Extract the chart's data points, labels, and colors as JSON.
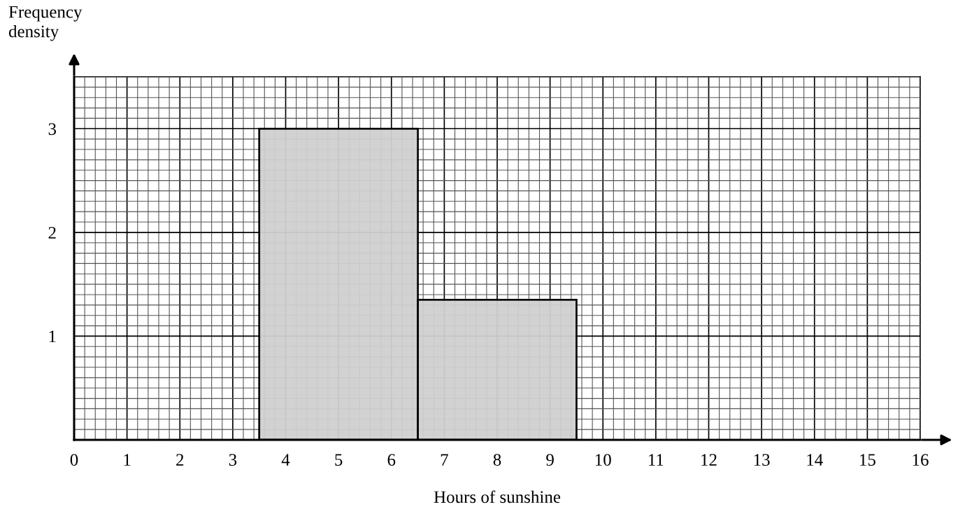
{
  "chart_data": {
    "type": "histogram",
    "xlabel": "Hours of sunshine",
    "ylabel": "Frequency\ndensity",
    "bins": [
      3.5,
      6.5,
      9.5
    ],
    "values": [
      3,
      1.35
    ],
    "color": "#d0d0d0",
    "xlim": [
      0,
      16
    ],
    "ylim": [
      0,
      3.5
    ],
    "xticks": [
      0,
      1,
      2,
      3,
      4,
      5,
      6,
      7,
      8,
      9,
      10,
      11,
      12,
      13,
      14,
      15,
      16
    ],
    "yticks": [
      1,
      2,
      3
    ],
    "grid": true
  }
}
